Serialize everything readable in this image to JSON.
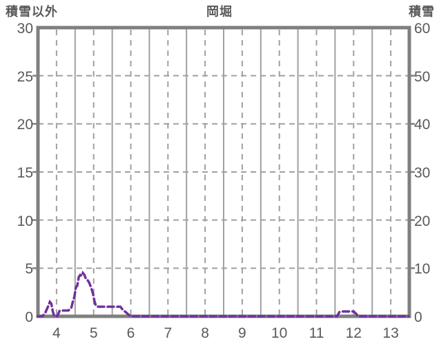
{
  "header": {
    "left_axis_title": "積雪以外",
    "station_title": "岡堀",
    "right_axis_title": "積雪"
  },
  "chart_data": {
    "type": "line",
    "title": "岡堀",
    "left_axis": {
      "label": "積雪以外",
      "min": 0,
      "max": 30,
      "step": 5,
      "ticks": [
        30,
        25,
        20,
        15,
        10,
        5,
        0
      ]
    },
    "right_axis": {
      "label": "積雪",
      "min": 0,
      "max": 60,
      "step": 10,
      "ticks": [
        60,
        50,
        40,
        30,
        20,
        10,
        0
      ]
    },
    "x_axis": {
      "labels": [
        4,
        5,
        6,
        7,
        8,
        9,
        10,
        11,
        12,
        13
      ],
      "domain": [
        3.5,
        13.5
      ],
      "label_position": "noon-of-day"
    },
    "grid": {
      "horizontal": "dashed",
      "vertical_day_boundary": "solid",
      "vertical_noon": "dashed"
    },
    "legend": "none",
    "series": [
      {
        "name": "積雪以外",
        "axis": "left",
        "color": "#7030A0",
        "style": "dashed",
        "points": [
          [
            3.5,
            0
          ],
          [
            3.62,
            0
          ],
          [
            3.7,
            0.4
          ],
          [
            3.78,
            1.1
          ],
          [
            3.82,
            1.5
          ],
          [
            3.86,
            1.3
          ],
          [
            3.9,
            0.5
          ],
          [
            3.94,
            0
          ],
          [
            4.02,
            0
          ],
          [
            4.08,
            0.55
          ],
          [
            4.18,
            0.6
          ],
          [
            4.32,
            0.6
          ],
          [
            4.4,
            0.9
          ],
          [
            4.45,
            1.7
          ],
          [
            4.48,
            2.0
          ],
          [
            4.52,
            3.0
          ],
          [
            4.56,
            3.2
          ],
          [
            4.6,
            4.1
          ],
          [
            4.64,
            4.3
          ],
          [
            4.68,
            4.2
          ],
          [
            4.71,
            4.5
          ],
          [
            4.75,
            4.3
          ],
          [
            4.79,
            3.9
          ],
          [
            4.83,
            3.8
          ],
          [
            4.88,
            3.5
          ],
          [
            4.93,
            3.0
          ],
          [
            4.98,
            2.4
          ],
          [
            5.02,
            1.6
          ],
          [
            5.06,
            1.1
          ],
          [
            5.12,
            1.0
          ],
          [
            5.45,
            1.0
          ],
          [
            5.72,
            1.0
          ],
          [
            5.8,
            0.6
          ],
          [
            5.86,
            0.45
          ],
          [
            5.93,
            0.2
          ],
          [
            6.0,
            0
          ],
          [
            7.0,
            0
          ],
          [
            8.0,
            0
          ],
          [
            9.0,
            0
          ],
          [
            10.0,
            0
          ],
          [
            11.0,
            0
          ],
          [
            11.55,
            0
          ],
          [
            11.62,
            0.45
          ],
          [
            11.7,
            0.5
          ],
          [
            12.0,
            0.5
          ],
          [
            12.06,
            0.3
          ],
          [
            12.12,
            0
          ],
          [
            12.8,
            0
          ],
          [
            13.48,
            0
          ]
        ]
      }
    ],
    "colors": {
      "border": "#7f7f7f",
      "gridline": "#a0a0a0",
      "text": "#595959",
      "series": "#7030A0",
      "background": "#ffffff"
    }
  }
}
